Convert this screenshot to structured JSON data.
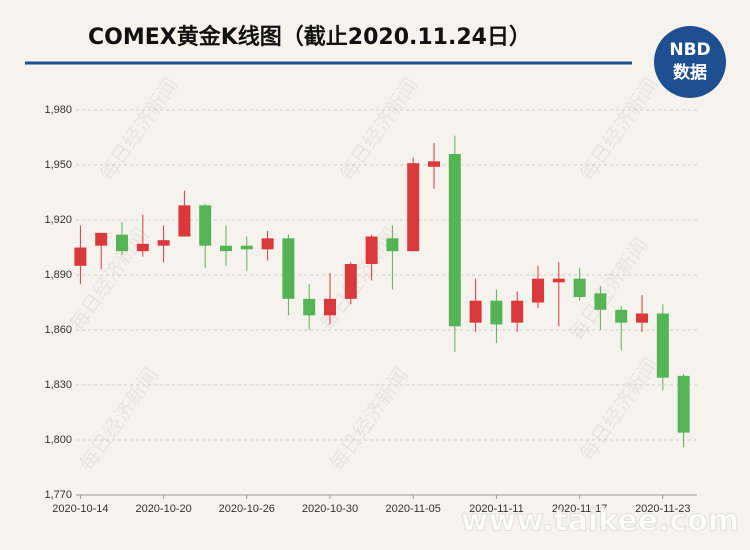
{
  "chart_data": {
    "type": "candlestick",
    "title": "COMEX黄金K线图（截止2020.11.24日）",
    "categories": [
      "2020-10-14",
      null,
      null,
      null,
      "2020-10-20",
      null,
      null,
      null,
      "2020-10-26",
      null,
      null,
      null,
      "2020-10-30",
      null,
      null,
      null,
      "2020-11-05",
      null,
      null,
      null,
      "2020-11-11",
      null,
      null,
      null,
      "2020-11-17",
      null,
      null,
      null,
      "2020-11-23",
      null
    ],
    "open": [
      1895,
      1906,
      1912,
      1903,
      1906,
      1911,
      1928,
      1906,
      1906,
      1904,
      1910,
      1877,
      1868,
      1877,
      1896,
      1910,
      1903,
      1949,
      1956,
      1864,
      1876,
      1864,
      1875,
      1886,
      1888,
      1880,
      1871,
      1864,
      1869,
      1835
    ],
    "high": [
      1917,
      1913,
      1919,
      1923,
      1917,
      1936,
      1929,
      1917,
      1911,
      1914,
      1912,
      1885,
      1891,
      1897,
      1912,
      1917,
      1954,
      1962,
      1966,
      1888,
      1882,
      1881,
      1895,
      1897,
      1894,
      1884,
      1873,
      1879,
      1874,
      1836
    ],
    "low": [
      1885,
      1893,
      1901,
      1900,
      1897,
      1911,
      1894,
      1895,
      1892,
      1898,
      1868,
      1860,
      1863,
      1874,
      1887,
      1882,
      1903,
      1937,
      1848,
      1859,
      1853,
      1859,
      1872,
      1862,
      1876,
      1860,
      1849,
      1859,
      1827,
      1796
    ],
    "close": [
      1905,
      1913,
      1903,
      1907,
      1909,
      1928,
      1906,
      1903,
      1904,
      1910,
      1877,
      1868,
      1877,
      1896,
      1911,
      1903,
      1951,
      1952,
      1862,
      1876,
      1863,
      1876,
      1888,
      1888,
      1878,
      1871,
      1864,
      1869,
      1834,
      1804
    ],
    "up_color": "#d9393b",
    "down_color": "#55b455",
    "ylim": [
      1770,
      1980
    ],
    "yticks": [
      {
        "value": 1770,
        "label": "1,770"
      },
      {
        "value": 1800,
        "label": "1,800"
      },
      {
        "value": 1830,
        "label": "1,830"
      },
      {
        "value": 1860,
        "label": "1,860"
      },
      {
        "value": 1890,
        "label": "1,890"
      },
      {
        "value": 1920,
        "label": "1,920"
      },
      {
        "value": 1950,
        "label": "1,950"
      },
      {
        "value": 1980,
        "label": "1,980"
      }
    ],
    "grid": true
  },
  "logo": {
    "top": "NBD",
    "bottom": "数据"
  },
  "watermark": "每日经济新闻",
  "site_watermark": "www.taikee.com"
}
